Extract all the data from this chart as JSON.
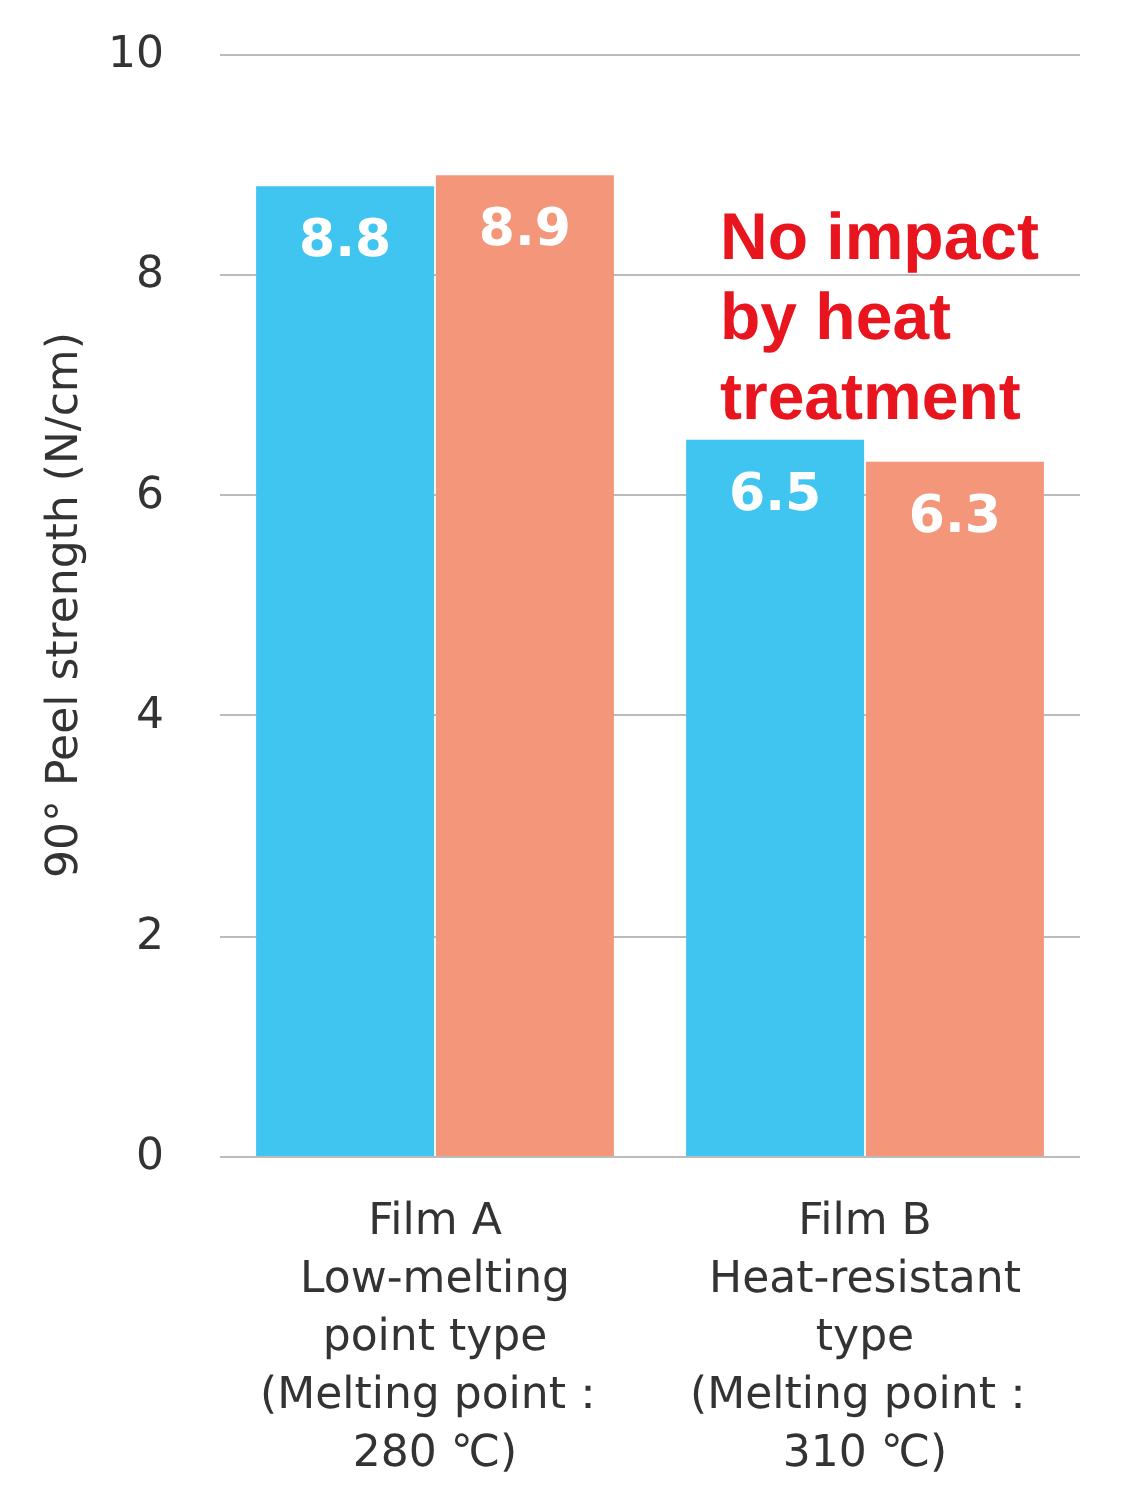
{
  "chart_data": {
    "type": "bar",
    "ylabel": "90° Peel strength (N/cm)",
    "categories": [
      "Film A\nLow-melting\npoint type\n(Melting point：\n280 ℃)",
      "Film B\nHeat-resistant\ntype\n(Melting point：\n310 ℃)"
    ],
    "series": [
      {
        "color": "#40c4f0",
        "values": [
          8.8,
          6.5
        ]
      },
      {
        "color": "#f4967a",
        "values": [
          8.9,
          6.3
        ]
      }
    ],
    "ylim": [
      0,
      10
    ],
    "yticks": [
      0,
      2,
      4,
      6,
      8,
      10
    ],
    "grid": "y",
    "data_labels": true,
    "annotations": [
      "No impact\nby heat\ntreatment"
    ]
  }
}
